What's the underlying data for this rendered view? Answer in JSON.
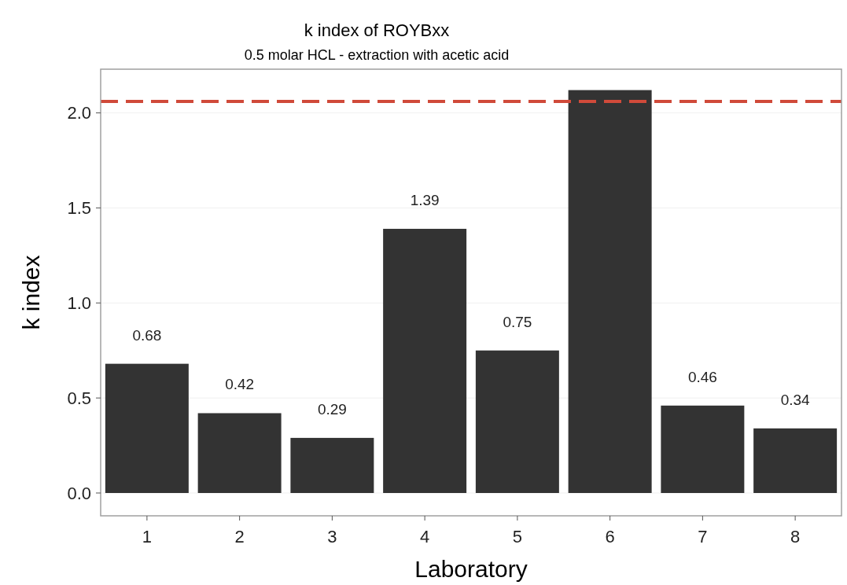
{
  "chart_data": {
    "type": "bar",
    "title": "k index of ROYBxx",
    "subtitle": "0.5 molar HCL - extraction with acetic acid",
    "xlabel": "Laboratory",
    "ylabel": "k index",
    "categories": [
      "1",
      "2",
      "3",
      "4",
      "5",
      "6",
      "7",
      "8"
    ],
    "values": [
      0.68,
      0.42,
      0.29,
      1.39,
      0.75,
      2.12,
      0.46,
      0.34
    ],
    "value_labels": [
      "0.68",
      "0.42",
      "0.29",
      "1.39",
      "0.75",
      null,
      "0.46",
      "0.34"
    ],
    "color": "#333333",
    "ylim": [
      -0.12,
      2.23
    ],
    "yticks": [
      {
        "value": 0,
        "label": "0.0"
      },
      {
        "value": 0.5,
        "label": "0.5"
      },
      {
        "value": 1,
        "label": "1.0"
      },
      {
        "value": 1.5,
        "label": "1.5"
      },
      {
        "value": 2,
        "label": "2.0"
      }
    ],
    "grid": "y",
    "ref_lines": [
      {
        "axis": "y",
        "value": 2.06,
        "color": "#d04a3a",
        "line_style": "dashed"
      }
    ]
  }
}
